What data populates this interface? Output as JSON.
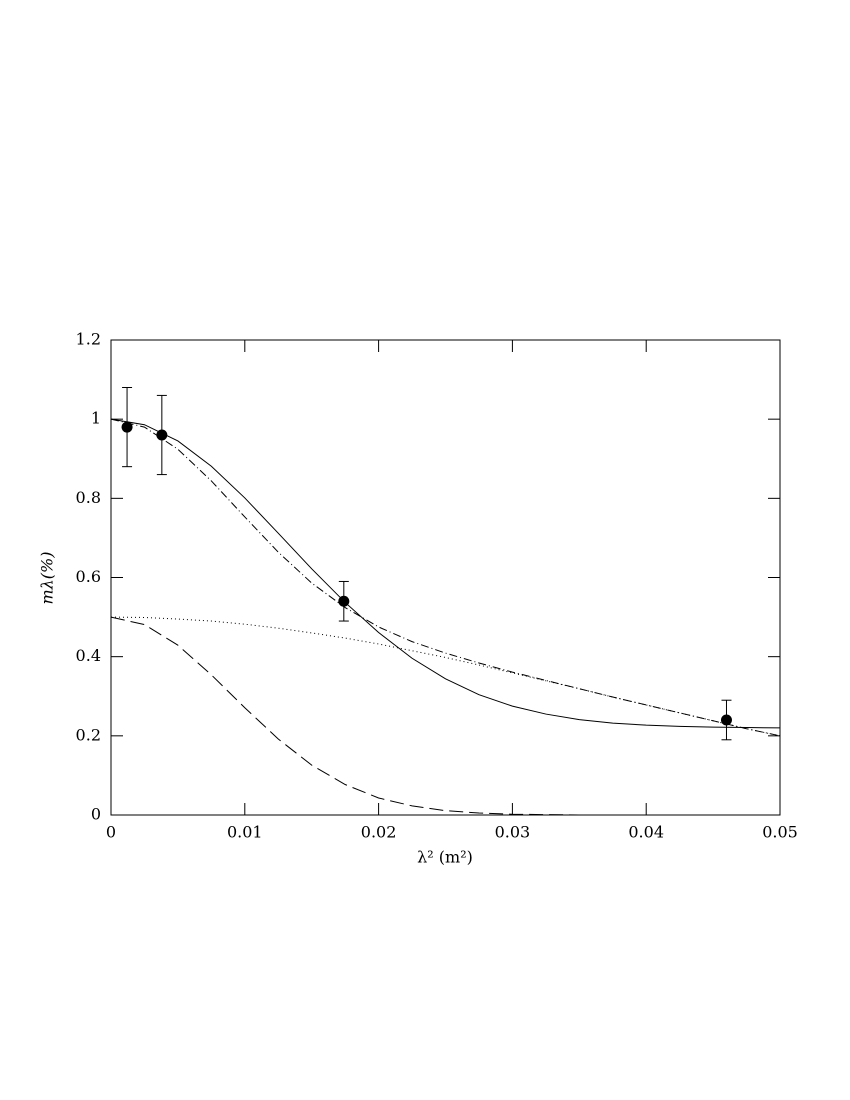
{
  "chart_data": {
    "type": "line",
    "xlabel": "λ² (m²)",
    "ylabel": "mλ(%)",
    "x": [
      0,
      0.0025,
      0.005,
      0.0075,
      0.01,
      0.0125,
      0.015,
      0.0175,
      0.02,
      0.0225,
      0.025,
      0.0275,
      0.03,
      0.0325,
      0.035,
      0.0375,
      0.04,
      0.0425,
      0.045,
      0.0475,
      0.05
    ],
    "series": [
      {
        "color": "#000",
        "dash": "solid",
        "values": [
          1.0,
          0.986,
          0.945,
          0.881,
          0.801,
          0.712,
          0.622,
          0.537,
          0.461,
          0.396,
          0.344,
          0.304,
          0.275,
          0.255,
          0.241,
          0.232,
          0.227,
          0.224,
          0.222,
          0.221,
          0.22
        ]
      },
      {
        "color": "#000",
        "dash": "dashdot",
        "values": [
          1.0,
          0.98,
          0.924,
          0.844,
          0.753,
          0.664,
          0.586,
          0.524,
          0.475,
          0.438,
          0.409,
          0.384,
          0.361,
          0.34,
          0.319,
          0.298,
          0.278,
          0.258,
          0.238,
          0.218,
          0.2
        ]
      },
      {
        "color": "#000",
        "dash": "dotted",
        "values": [
          0.5,
          0.499,
          0.495,
          0.49,
          0.482,
          0.472,
          0.46,
          0.447,
          0.432,
          0.415,
          0.398,
          0.379,
          0.359,
          0.339,
          0.319,
          0.298,
          0.278,
          0.258,
          0.238,
          0.218,
          0.2
        ]
      },
      {
        "color": "#000",
        "dash": "dashed",
        "values": [
          0.5,
          0.481,
          0.429,
          0.354,
          0.271,
          0.192,
          0.126,
          0.077,
          0.043,
          0.023,
          0.011,
          0.005,
          0.002,
          0.001,
          0,
          0,
          0,
          0,
          0,
          0,
          0
        ]
      }
    ],
    "points": {
      "color": "#000",
      "x": [
        0.0012,
        0.0038,
        0.0174,
        0.046
      ],
      "values": [
        0.98,
        0.96,
        0.54,
        0.24
      ],
      "errors": [
        0.1,
        0.1,
        0.05,
        0.05
      ]
    },
    "xlim": [
      0,
      0.05
    ],
    "xticks": [
      0,
      0.01,
      0.02,
      0.03,
      0.04,
      0.05
    ],
    "ylim": [
      0,
      1.2
    ],
    "yticks": [
      0,
      0.2,
      0.4,
      0.6,
      0.8,
      1,
      1.2
    ]
  }
}
